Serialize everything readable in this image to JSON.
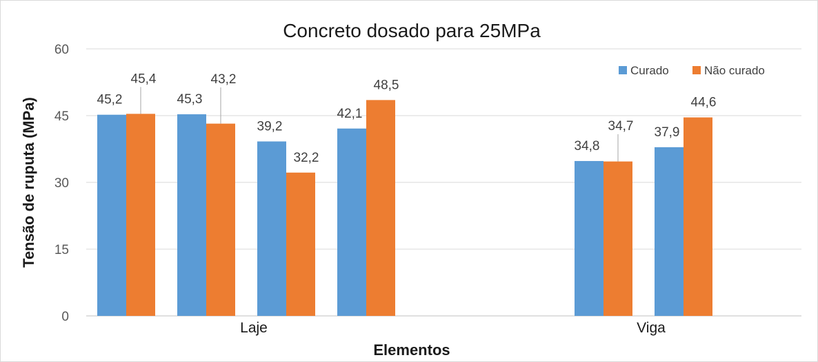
{
  "chart_data": {
    "type": "bar",
    "title": "Concreto dosado para 25MPa",
    "xlabel": "Elementos",
    "ylabel": "Tensão de ruputa (MPa)",
    "ylim": [
      0,
      60
    ],
    "yticks": [
      0,
      15,
      30,
      45,
      60
    ],
    "grid": true,
    "legend_position": "top-right",
    "categories": [
      "Laje",
      "Viga"
    ],
    "groups": [
      {
        "category": "Laje",
        "pairs": [
          [
            45.2,
            45.4
          ],
          [
            45.3,
            43.2
          ],
          [
            39.2,
            32.2
          ],
          [
            42.1,
            48.5
          ]
        ]
      },
      {
        "category": "Viga",
        "pairs": [
          [
            34.8,
            34.7
          ],
          [
            37.9,
            44.6
          ]
        ]
      }
    ],
    "series": [
      {
        "name": "Curado",
        "color": "#5b9bd5"
      },
      {
        "name": "Não curado",
        "color": "#ed7d31"
      }
    ],
    "value_labels": [
      [
        "45,2",
        "45,4"
      ],
      [
        "45,3",
        "43,2"
      ],
      [
        "39,2",
        "32,2"
      ],
      [
        "42,1",
        "48,5"
      ],
      [
        "34,8",
        "34,7"
      ],
      [
        "37,9",
        "44,6"
      ]
    ]
  }
}
